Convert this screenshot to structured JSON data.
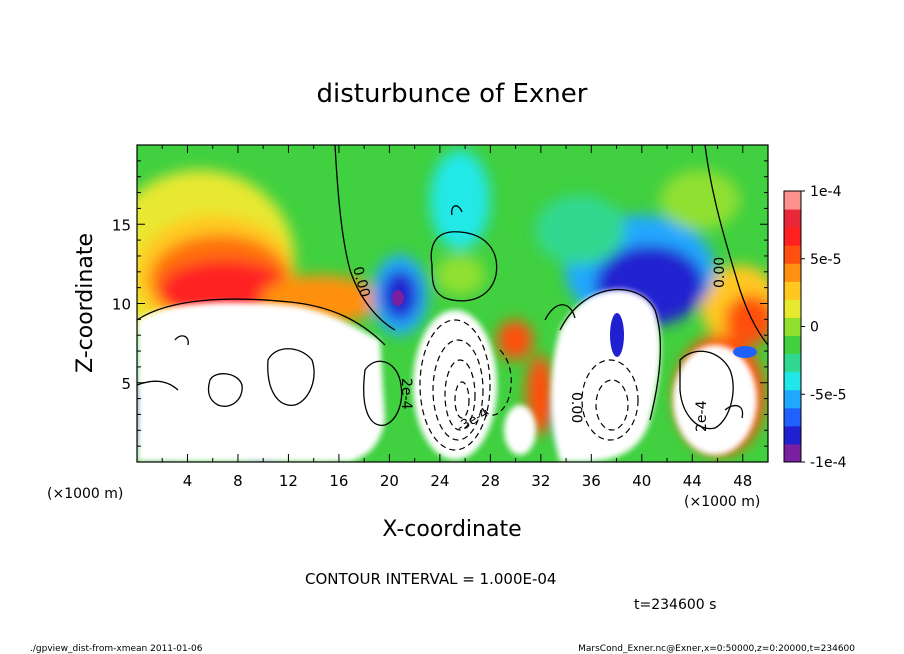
{
  "chart_data": {
    "type": "heatmap",
    "title": "disturbunce of Exner",
    "xlabel": "X-coordinate",
    "ylabel": "Z-coordinate",
    "x_unit": "(×1000 m)",
    "y_unit": "(×1000 m)",
    "xlim": [
      0,
      50
    ],
    "ylim": [
      0,
      20
    ],
    "x_ticks": [
      "4",
      "8",
      "12",
      "16",
      "20",
      "24",
      "28",
      "32",
      "36",
      "40",
      "44",
      "48"
    ],
    "y_ticks": [
      "5",
      "10",
      "15"
    ],
    "colorbar": {
      "min": -0.0001,
      "max": 0.0001,
      "labels": [
        "1e-4",
        "5e-5",
        "0",
        "-5e-5",
        "-1e-4"
      ],
      "colors": [
        "#7a1fa0",
        "#2020d0",
        "#2060ff",
        "#20a8ff",
        "#20e8e8",
        "#30d890",
        "#40d040",
        "#90e030",
        "#e8e830",
        "#ffc820",
        "#ff9010",
        "#ff5010",
        "#ff2020",
        "#e82838",
        "#ff9090"
      ]
    },
    "contour_labels": [
      "0.00",
      "0.00",
      "0.00",
      "2e-4",
      "2e-4",
      "-3e-4"
    ],
    "annotations": {
      "contour_interval": "CONTOUR INTERVAL = 1.000E-04",
      "time": "t=234600 s"
    }
  },
  "footer": {
    "left": "./gpview_dist-from-xmean  2011-01-06",
    "right": "MarsCond_Exner.nc@Exner,x=0:50000,z=0:20000,t=234600"
  }
}
